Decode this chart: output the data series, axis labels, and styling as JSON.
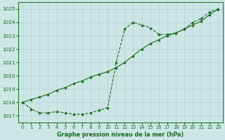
{
  "title": "Graphe pression niveau de la mer (hPa)",
  "background_color": "#cce5e5",
  "grid_color": "#b0d0d0",
  "line_color": "#1a6b1a",
  "x_values": [
    0,
    1,
    2,
    3,
    4,
    5,
    6,
    7,
    8,
    9,
    10,
    11,
    12,
    13,
    14,
    15,
    16,
    17,
    18,
    19,
    20,
    21,
    22,
    23
  ],
  "series1": [
    1018.0,
    1017.5,
    1017.2,
    1017.2,
    1017.3,
    1017.2,
    1017.1,
    1017.1,
    1017.2,
    1017.4,
    1017.6,
    1021.0,
    1023.5,
    1024.0,
    1023.8,
    1023.6,
    1023.1,
    1023.1,
    1023.2,
    1023.5,
    1024.0,
    1024.3,
    1024.8,
    1025.0
  ],
  "series2": [
    1018.0,
    1018.2,
    1018.4,
    1018.6,
    1018.9,
    1019.1,
    1019.4,
    1019.6,
    1019.9,
    1020.1,
    1020.3,
    1020.6,
    1021.0,
    1021.5,
    1022.0,
    1022.4,
    1022.7,
    1023.0,
    1023.2,
    1023.5,
    1023.8,
    1024.1,
    1024.6,
    1025.0
  ],
  "ylim": [
    1016.5,
    1025.5
  ],
  "yticks": [
    1017,
    1018,
    1019,
    1020,
    1021,
    1022,
    1023,
    1024,
    1025
  ],
  "xlim": [
    -0.5,
    23.5
  ],
  "xticks": [
    0,
    1,
    2,
    3,
    4,
    5,
    6,
    7,
    8,
    9,
    10,
    11,
    12,
    13,
    14,
    15,
    16,
    17,
    18,
    19,
    20,
    21,
    22,
    23
  ],
  "xlabel_fontsize": 5.8,
  "tick_fontsize": 4.8,
  "ytick_fontsize": 5.2
}
